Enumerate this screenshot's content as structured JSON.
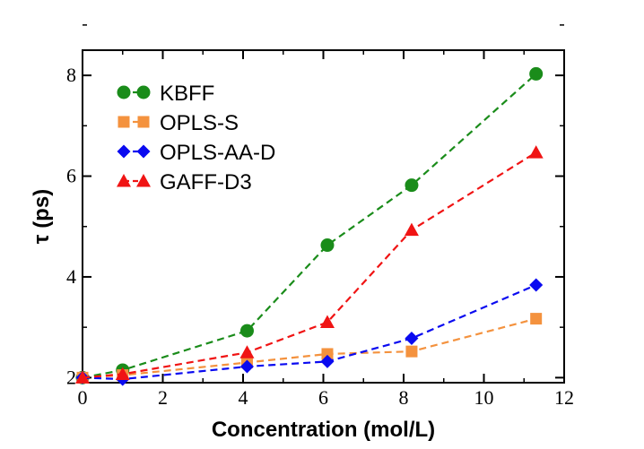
{
  "chart_data": {
    "type": "line",
    "title": "",
    "xlabel": "Concentration (mol/L)",
    "ylabel": "τ (ps)",
    "xlim": [
      0,
      12
    ],
    "ylim": [
      1.9,
      8.5
    ],
    "xticks": [
      0,
      2,
      4,
      6,
      8,
      10,
      12
    ],
    "yticks": [
      2,
      4,
      6,
      8
    ],
    "x_tick_labels": [
      "0",
      "2",
      "4",
      "6",
      "8",
      "10",
      "12"
    ],
    "y_tick_labels": [
      "2",
      "4",
      "6",
      "8"
    ],
    "grid": false,
    "legend_position": "top-left",
    "series": [
      {
        "name": "KBFF",
        "color": "#1a8c1a",
        "marker": "circle",
        "x": [
          0,
          1.0,
          4.1,
          6.1,
          8.2,
          11.3
        ],
        "y": [
          2.0,
          2.15,
          2.93,
          4.63,
          5.82,
          8.03
        ]
      },
      {
        "name": "OPLS-S",
        "color": "#f4923e",
        "marker": "square",
        "x": [
          0,
          1.0,
          4.1,
          6.1,
          8.2,
          11.3
        ],
        "y": [
          2.0,
          2.05,
          2.3,
          2.47,
          2.52,
          3.17
        ]
      },
      {
        "name": "OPLS-AA-D",
        "color": "#0a0af0",
        "marker": "diamond",
        "x": [
          0,
          1.0,
          4.1,
          6.1,
          8.2,
          11.3
        ],
        "y": [
          2.0,
          1.97,
          2.22,
          2.32,
          2.78,
          3.84
        ]
      },
      {
        "name": "GAFF-D3",
        "color": "#f01414",
        "marker": "triangle",
        "x": [
          0,
          1.0,
          4.1,
          6.1,
          8.2,
          11.3
        ],
        "y": [
          2.0,
          2.07,
          2.5,
          3.1,
          4.93,
          6.47
        ]
      }
    ]
  }
}
